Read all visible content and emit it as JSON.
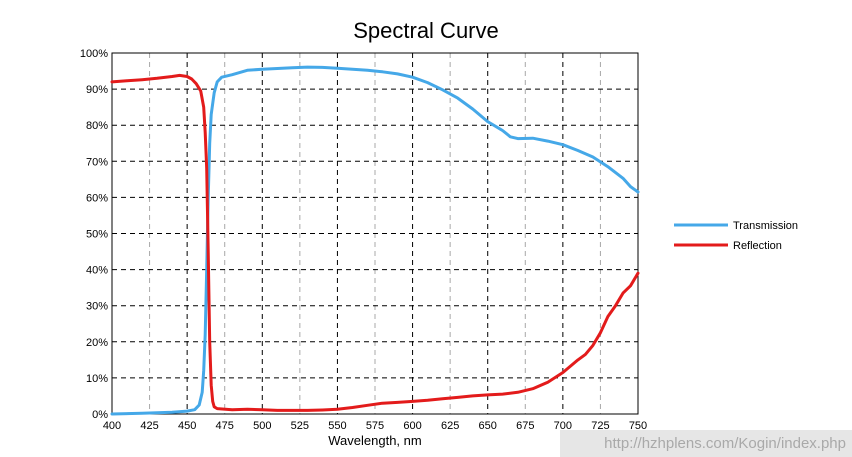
{
  "chart_data": {
    "type": "line",
    "title": "Spectral Curve",
    "xlabel": "Wavelength, nm",
    "ylabel": "",
    "xlim": [
      400,
      750
    ],
    "ylim": [
      0,
      100
    ],
    "x_ticks": [
      400,
      425,
      450,
      475,
      500,
      525,
      550,
      575,
      600,
      625,
      650,
      675,
      700,
      725,
      750
    ],
    "y_ticks": [
      0,
      10,
      20,
      30,
      40,
      50,
      60,
      70,
      80,
      90,
      100
    ],
    "y_tick_suffix": "%",
    "grid": true,
    "legend_position": "right",
    "series": [
      {
        "name": "Transmission",
        "color": "#45a8e8",
        "points": [
          [
            400,
            0
          ],
          [
            420,
            0.2
          ],
          [
            440,
            0.5
          ],
          [
            450,
            0.8
          ],
          [
            455,
            1.2
          ],
          [
            458,
            2.5
          ],
          [
            460,
            6
          ],
          [
            461,
            12
          ],
          [
            462,
            22
          ],
          [
            463,
            40
          ],
          [
            464,
            60
          ],
          [
            465,
            75
          ],
          [
            466,
            83
          ],
          [
            468,
            89
          ],
          [
            470,
            92
          ],
          [
            473,
            93.3
          ],
          [
            480,
            94
          ],
          [
            490,
            95.2
          ],
          [
            500,
            95.5
          ],
          [
            510,
            95.7
          ],
          [
            520,
            95.9
          ],
          [
            530,
            96.1
          ],
          [
            540,
            96
          ],
          [
            550,
            95.8
          ],
          [
            560,
            95.5
          ],
          [
            570,
            95.2
          ],
          [
            580,
            94.8
          ],
          [
            590,
            94.2
          ],
          [
            600,
            93.3
          ],
          [
            610,
            91.8
          ],
          [
            620,
            89.8
          ],
          [
            630,
            87.5
          ],
          [
            640,
            84.5
          ],
          [
            650,
            81
          ],
          [
            660,
            78.5
          ],
          [
            665,
            76.8
          ],
          [
            670,
            76.3
          ],
          [
            680,
            76.4
          ],
          [
            690,
            75.6
          ],
          [
            700,
            74.6
          ],
          [
            710,
            73
          ],
          [
            720,
            71.2
          ],
          [
            730,
            68.5
          ],
          [
            740,
            65.3
          ],
          [
            745,
            63
          ],
          [
            750,
            61.5
          ]
        ]
      },
      {
        "name": "Reflection",
        "color": "#e31b1b",
        "points": [
          [
            400,
            92
          ],
          [
            410,
            92.3
          ],
          [
            420,
            92.6
          ],
          [
            430,
            93
          ],
          [
            440,
            93.5
          ],
          [
            445,
            93.8
          ],
          [
            450,
            93.5
          ],
          [
            453,
            92.8
          ],
          [
            456,
            91.5
          ],
          [
            459,
            89.5
          ],
          [
            461,
            85
          ],
          [
            462,
            78
          ],
          [
            463,
            68
          ],
          [
            464,
            45
          ],
          [
            465,
            20
          ],
          [
            466,
            8
          ],
          [
            467,
            3.5
          ],
          [
            468,
            2
          ],
          [
            470,
            1.5
          ],
          [
            480,
            1.2
          ],
          [
            490,
            1.3
          ],
          [
            500,
            1.2
          ],
          [
            510,
            1
          ],
          [
            520,
            1
          ],
          [
            530,
            1
          ],
          [
            540,
            1.1
          ],
          [
            550,
            1.3
          ],
          [
            560,
            1.8
          ],
          [
            570,
            2.4
          ],
          [
            580,
            3
          ],
          [
            590,
            3.2
          ],
          [
            600,
            3.5
          ],
          [
            610,
            3.8
          ],
          [
            620,
            4.2
          ],
          [
            630,
            4.6
          ],
          [
            640,
            5
          ],
          [
            650,
            5.3
          ],
          [
            660,
            5.5
          ],
          [
            670,
            6
          ],
          [
            680,
            7
          ],
          [
            690,
            8.8
          ],
          [
            700,
            11.5
          ],
          [
            710,
            15
          ],
          [
            715,
            16.5
          ],
          [
            720,
            19
          ],
          [
            725,
            22.5
          ],
          [
            730,
            27
          ],
          [
            735,
            30
          ],
          [
            740,
            33.5
          ],
          [
            745,
            35.5
          ],
          [
            750,
            39
          ]
        ]
      }
    ]
  },
  "watermark": "http://hzhplens.com/Kogin/index.php"
}
